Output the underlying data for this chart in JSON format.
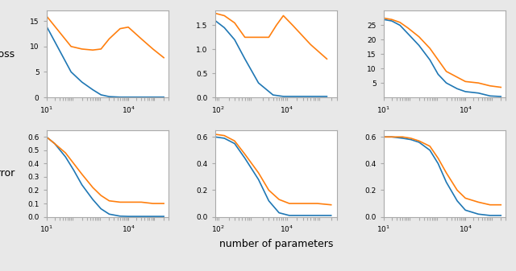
{
  "xlabel": "number of parameters",
  "ylabel_top": "loss",
  "ylabel_bot": "error",
  "blue_color": "#1f77b4",
  "orange_color": "#ff7f0e",
  "linewidth": 1.2,
  "fig_facecolor": "#e8e8e8",
  "plots": [
    {
      "row": 0,
      "col": 0,
      "ylim": [
        0,
        17
      ],
      "yticks": [
        0,
        5,
        10,
        15
      ],
      "xlim": [
        10,
        300000
      ],
      "xticks": [
        10,
        10000
      ],
      "blue_x": [
        10,
        20,
        40,
        80,
        200,
        500,
        1000,
        2000,
        5000,
        10000,
        30000,
        80000,
        200000
      ],
      "blue_y": [
        14,
        11,
        8,
        5,
        3,
        1.5,
        0.5,
        0.15,
        0.05,
        0.05,
        0.05,
        0.05,
        0.05
      ],
      "orange_x": [
        10,
        20,
        40,
        80,
        200,
        500,
        1000,
        2000,
        5000,
        10000,
        30000,
        80000,
        200000
      ],
      "orange_y": [
        16,
        14,
        12,
        10,
        9.5,
        9.3,
        9.5,
        11.5,
        13.5,
        13.8,
        11.5,
        9.5,
        7.8
      ]
    },
    {
      "row": 0,
      "col": 1,
      "ylim": [
        0,
        1.8
      ],
      "yticks": [
        0.0,
        0.5,
        1.0,
        1.5
      ],
      "xlim": [
        80,
        300000
      ],
      "xticks": [
        100,
        10000
      ],
      "blue_x": [
        80,
        150,
        300,
        600,
        1500,
        4000,
        8000,
        15000,
        50000,
        150000
      ],
      "blue_y": [
        1.6,
        1.45,
        1.2,
        0.8,
        0.3,
        0.05,
        0.02,
        0.02,
        0.02,
        0.02
      ],
      "orange_x": [
        80,
        150,
        300,
        600,
        1500,
        3000,
        5000,
        8000,
        15000,
        50000,
        150000
      ],
      "orange_y": [
        1.75,
        1.7,
        1.55,
        1.25,
        1.25,
        1.25,
        1.5,
        1.7,
        1.5,
        1.1,
        0.8
      ]
    },
    {
      "row": 0,
      "col": 2,
      "ylim": [
        0,
        30
      ],
      "yticks": [
        5,
        10,
        15,
        20,
        25
      ],
      "xlim": [
        10,
        300000
      ],
      "xticks": [
        10,
        10000
      ],
      "blue_x": [
        10,
        20,
        40,
        80,
        200,
        500,
        1000,
        2000,
        5000,
        10000,
        30000,
        80000,
        200000
      ],
      "blue_y": [
        27,
        26.5,
        25,
        22,
        18,
        13,
        8,
        5,
        3,
        2,
        1.5,
        0.5,
        0.3
      ],
      "orange_x": [
        10,
        20,
        40,
        80,
        200,
        500,
        1000,
        2000,
        5000,
        10000,
        30000,
        80000,
        200000
      ],
      "orange_y": [
        27.5,
        27,
        26,
        24,
        21,
        17,
        13,
        9,
        7,
        5.5,
        5.0,
        4.0,
        3.5
      ]
    },
    {
      "row": 1,
      "col": 0,
      "ylim": [
        0,
        0.65
      ],
      "yticks": [
        0.0,
        0.1,
        0.2,
        0.3,
        0.4,
        0.5,
        0.6
      ],
      "xlim": [
        10,
        300000
      ],
      "xticks": [
        10,
        10000
      ],
      "blue_x": [
        10,
        20,
        50,
        100,
        200,
        500,
        1000,
        2000,
        5000,
        10000,
        30000,
        80000,
        200000
      ],
      "blue_y": [
        0.6,
        0.55,
        0.45,
        0.35,
        0.24,
        0.13,
        0.06,
        0.02,
        0.005,
        0.003,
        0.003,
        0.003,
        0.003
      ],
      "orange_x": [
        10,
        20,
        50,
        100,
        200,
        500,
        1000,
        2000,
        5000,
        10000,
        30000,
        80000,
        200000
      ],
      "orange_y": [
        0.6,
        0.55,
        0.48,
        0.4,
        0.32,
        0.22,
        0.16,
        0.12,
        0.11,
        0.11,
        0.11,
        0.1,
        0.1
      ]
    },
    {
      "row": 1,
      "col": 1,
      "ylim": [
        0,
        0.65
      ],
      "yticks": [
        0.0,
        0.2,
        0.4,
        0.6
      ],
      "xlim": [
        80,
        300000
      ],
      "xticks": [
        100,
        10000
      ],
      "blue_x": [
        80,
        150,
        300,
        600,
        1500,
        3000,
        6000,
        12000,
        30000,
        80000,
        200000
      ],
      "blue_y": [
        0.6,
        0.59,
        0.55,
        0.44,
        0.28,
        0.12,
        0.03,
        0.01,
        0.01,
        0.01,
        0.01
      ],
      "orange_x": [
        80,
        150,
        300,
        600,
        1500,
        3000,
        6000,
        12000,
        30000,
        80000,
        200000
      ],
      "orange_y": [
        0.62,
        0.61,
        0.57,
        0.47,
        0.33,
        0.2,
        0.13,
        0.1,
        0.1,
        0.1,
        0.09
      ]
    },
    {
      "row": 1,
      "col": 2,
      "ylim": [
        0,
        0.65
      ],
      "yticks": [
        0.0,
        0.2,
        0.4,
        0.6
      ],
      "xlim": [
        10,
        300000
      ],
      "xticks": [
        10,
        10000
      ],
      "blue_x": [
        10,
        20,
        50,
        100,
        200,
        500,
        1000,
        2000,
        5000,
        10000,
        30000,
        80000,
        200000
      ],
      "blue_y": [
        0.6,
        0.6,
        0.59,
        0.58,
        0.56,
        0.5,
        0.4,
        0.26,
        0.12,
        0.05,
        0.02,
        0.01,
        0.01
      ],
      "orange_x": [
        10,
        20,
        50,
        100,
        200,
        500,
        1000,
        2000,
        5000,
        10000,
        30000,
        80000,
        200000
      ],
      "orange_y": [
        0.6,
        0.6,
        0.6,
        0.59,
        0.57,
        0.53,
        0.44,
        0.33,
        0.2,
        0.14,
        0.11,
        0.09,
        0.09
      ]
    }
  ]
}
